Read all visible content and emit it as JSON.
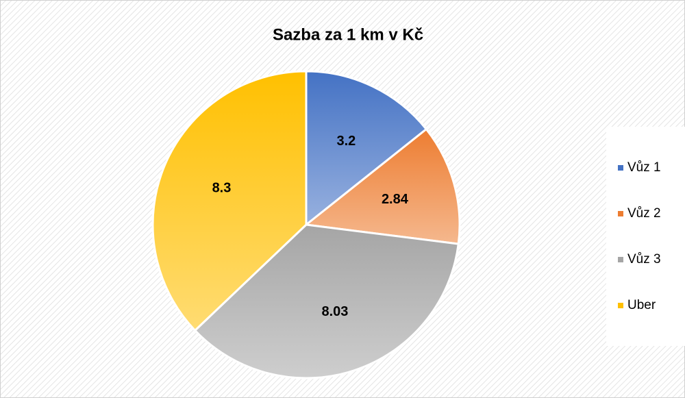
{
  "chart_data": {
    "type": "pie",
    "title": "Sazba za 1 km v Kč",
    "categories": [
      "Vůz 1",
      "Vůz 2",
      "Vůz 3",
      "Uber"
    ],
    "values": [
      3.2,
      2.84,
      8.03,
      8.3
    ],
    "colors": [
      "#4472c4",
      "#ed7d31",
      "#a5a5a5",
      "#ffc000"
    ],
    "legend": "right"
  }
}
